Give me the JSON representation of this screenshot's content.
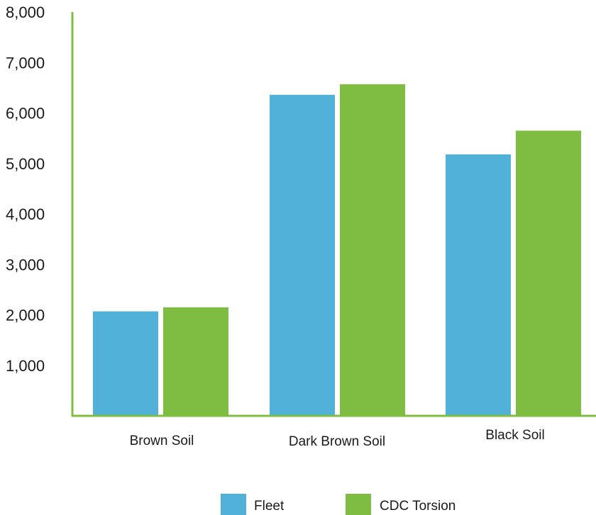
{
  "chart_data": {
    "type": "bar",
    "categories": [
      "Brown Soil",
      "Dark Brown Soil",
      "Black Soil"
    ],
    "series": [
      {
        "name": "Fleet",
        "values": [
          2070,
          6360,
          5180
        ],
        "color": "#52b1d9"
      },
      {
        "name": "CDC Torsion",
        "values": [
          2150,
          6570,
          5650
        ],
        "color": "#7fbc42"
      }
    ],
    "y_ticks": [
      "1,000",
      "2,000",
      "3,000",
      "4,000",
      "5,000",
      "6,000",
      "7,000",
      "8,000"
    ],
    "y_tick_values": [
      1000,
      2000,
      3000,
      4000,
      5000,
      6000,
      7000,
      8000
    ],
    "ylim": [
      0,
      8000
    ],
    "axis_color": "#7fbc42",
    "grid": false,
    "legend_position": "bottom-center"
  }
}
